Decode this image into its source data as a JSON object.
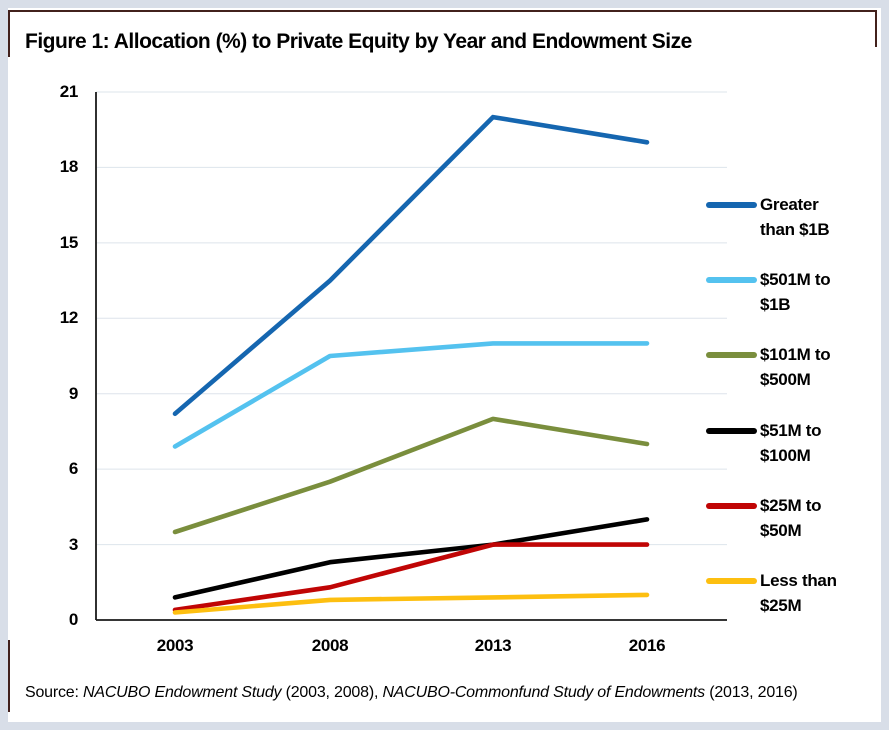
{
  "title": "Figure 1: Allocation (%) to Private Equity by Year and Endowment Size",
  "source": {
    "prefix": "Source: ",
    "study1": "NACUBO Endowment Study ",
    "years1": "(2003, 2008), ",
    "study2": "NACUBO-Commonfund Study of Endowments ",
    "years2": "(2013, 2016)"
  },
  "colors": {
    "grid": "#dde4eb",
    "axis": "#1a1a1a",
    "page_border": "#d8dee8",
    "top_rule": "#42211c"
  },
  "chart_data": {
    "type": "line",
    "title": "Allocation (%) to Private Equity by Year and Endowment Size",
    "categories": [
      "2003",
      "2008",
      "2013",
      "2016"
    ],
    "series": [
      {
        "name": "Greater than $1B",
        "legend_lines": [
          "Greater",
          "than $1B"
        ],
        "color": "#1566b0",
        "values": [
          8.2,
          13.5,
          20,
          19
        ]
      },
      {
        "name": "$501M to $1B",
        "legend_lines": [
          "$501M to",
          "$1B"
        ],
        "color": "#54c2ef",
        "values": [
          6.9,
          10.5,
          11,
          11
        ]
      },
      {
        "name": "$101M to $500M",
        "legend_lines": [
          "$101M to",
          "$500M"
        ],
        "color": "#7a8e3d",
        "values": [
          3.5,
          5.5,
          8,
          7
        ]
      },
      {
        "name": "$51M to $100M",
        "legend_lines": [
          "$51M to",
          "$100M"
        ],
        "color": "#000000",
        "values": [
          0.9,
          2.3,
          3,
          4
        ]
      },
      {
        "name": "$25M to $50M",
        "legend_lines": [
          "$25M to",
          "$50M"
        ],
        "color": "#c00505",
        "values": [
          0.4,
          1.3,
          3,
          3
        ]
      },
      {
        "name": "Less than $25M",
        "legend_lines": [
          "Less than",
          "$25M"
        ],
        "color": "#fdbf10",
        "values": [
          0.3,
          0.8,
          0.9,
          1
        ]
      }
    ],
    "xlabel": "",
    "ylabel": "",
    "ylim": [
      0,
      21
    ],
    "y_ticks": [
      0,
      3,
      6,
      9,
      12,
      15,
      18,
      21
    ],
    "grid": true,
    "legend_position": "right"
  }
}
